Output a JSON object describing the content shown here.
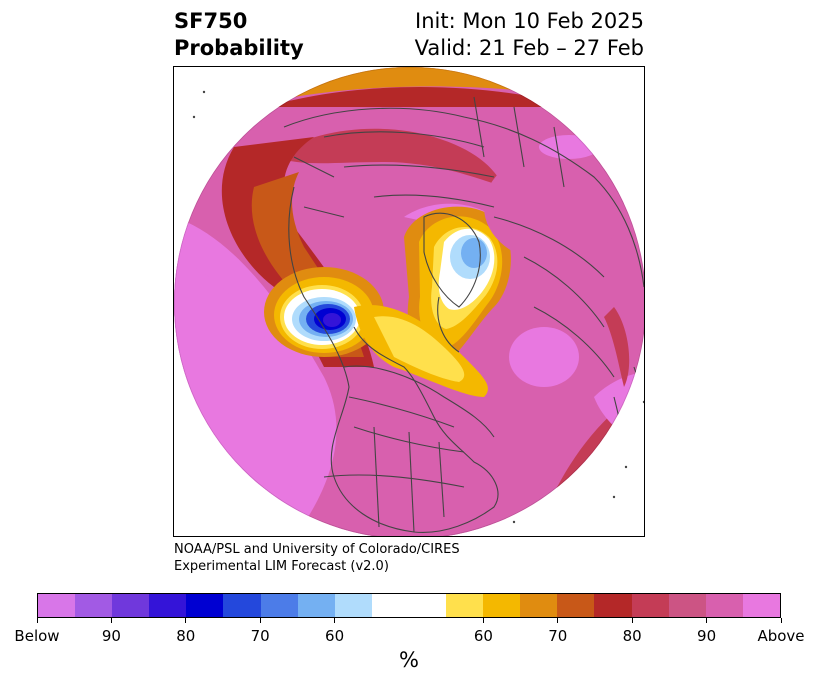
{
  "header": {
    "variable": "SF750",
    "product": "Probability",
    "init": "Init: Mon 10 Feb 2025",
    "valid": "Valid: 21 Feb – 27 Feb"
  },
  "credit": {
    "line1": "NOAA/PSL and University of Colorado/CIRES",
    "line2": "Experimental LIM Forecast (v2.0)"
  },
  "colorbar": {
    "colors": [
      "#d876e8",
      "#a25ae4",
      "#7038dc",
      "#3414d8",
      "#0000d2",
      "#2448dc",
      "#4c7ce8",
      "#74b0f2",
      "#b0dcfc",
      "#ffffff",
      "#ffffff",
      "#ffe04c",
      "#f4b800",
      "#e08c10",
      "#c85818",
      "#b42828",
      "#c43c56",
      "#cc5484",
      "#d860ae",
      "#e878e0"
    ],
    "tick_labels": [
      "Below",
      "90",
      "80",
      "70",
      "60",
      "60",
      "70",
      "80",
      "90",
      "Above"
    ],
    "units": "%"
  },
  "map": {
    "projection": "polar stereographic, North Pole",
    "region": "Northern Hemisphere",
    "features": [
      "coastlines",
      "country borders",
      "US state borders"
    ]
  }
}
